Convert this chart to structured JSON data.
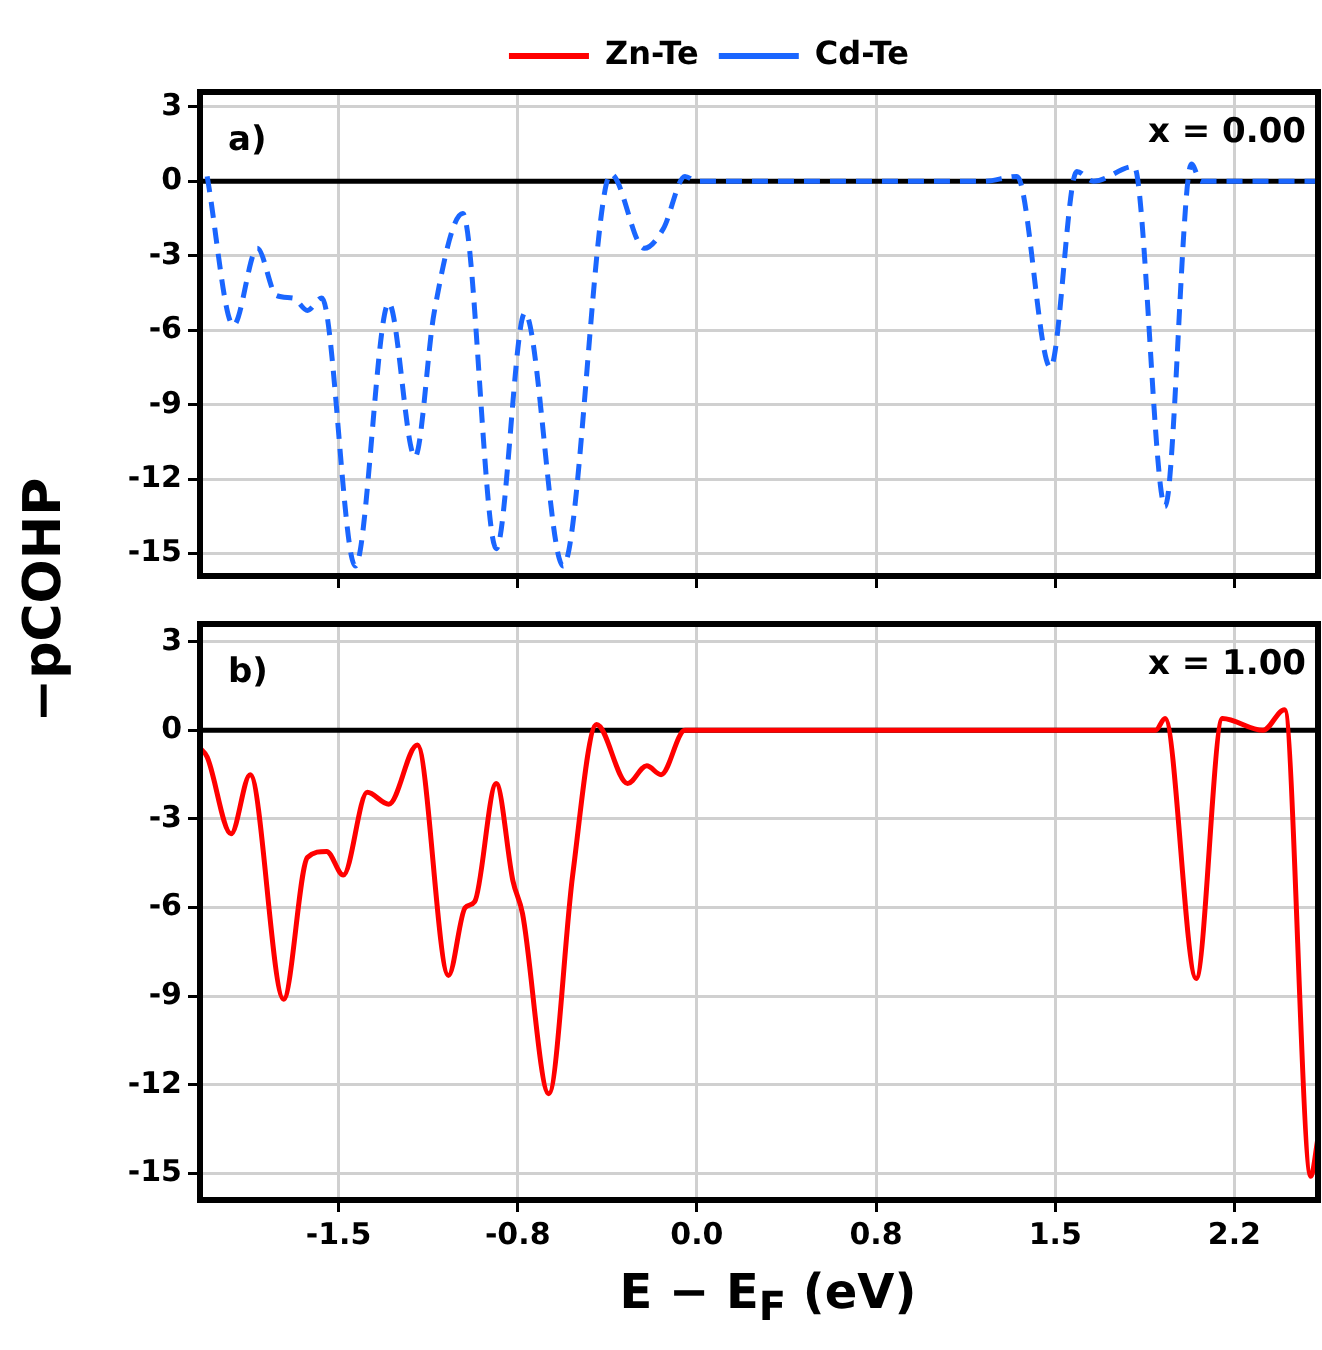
{
  "chart_data": [
    {
      "type": "line",
      "ylabel": "−pCOHP",
      "legend": "top",
      "grid": true,
      "marker": "none",
      "tick_labels": "y",
      "annotations": [
        "a)",
        "x = 0.00"
      ],
      "xlim": [
        -2.08,
        2.6
      ],
      "xticks": [
        {
          "value": -1.5,
          "label": null
        },
        {
          "value": -0.75,
          "label": null
        },
        {
          "value": 0,
          "label": null
        },
        {
          "value": 0.75,
          "label": null
        },
        {
          "value": 1.5,
          "label": null
        },
        {
          "value": 2.25,
          "label": null
        }
      ],
      "ylim": [
        -15.9,
        3.6
      ],
      "yticks": [
        3,
        0,
        -3,
        -6,
        -9,
        -12,
        -15
      ],
      "ref_lines": [
        {
          "axis": "y",
          "value": 0,
          "color": "#000000"
        }
      ],
      "series": [
        {
          "name": "Zn-Te",
          "color": "#ff0000",
          "line_style": "solid"
        },
        {
          "name": "Cd-Te",
          "color": "#1a66ff",
          "line_style": "dashed",
          "x": [
            -2.05,
            -1.94,
            -1.84,
            -1.76,
            -1.69,
            -1.63,
            -1.57,
            -1.43,
            -1.29,
            -1.18,
            -1.1,
            -0.98,
            -0.84,
            -0.72,
            -0.56,
            -0.36,
            -0.22,
            -0.14,
            -0.05,
            0,
            1.2,
            1.34,
            1.48,
            1.59,
            1.66,
            1.83,
            1.96,
            2.07,
            2.11,
            2.6
          ],
          "values": [
            0.2,
            -5.8,
            -2.7,
            -4.6,
            -4.7,
            -5.2,
            -4.7,
            -15.5,
            -4.9,
            -11.1,
            -5.3,
            -1.3,
            -14.8,
            -5.3,
            -15.5,
            0.3,
            -2.7,
            -1.9,
            0.2,
            0,
            0,
            0.2,
            -7.5,
            0.4,
            0,
            0.6,
            -13.1,
            0.7,
            0,
            0
          ]
        }
      ]
    },
    {
      "type": "line",
      "xlabel": "E − E$_{F}$ (eV)",
      "grid": true,
      "marker": "none",
      "annotations": [
        "b)",
        "x = 1.00"
      ],
      "xlim": [
        -2.08,
        2.6
      ],
      "xticks": [
        -1.5,
        {
          "value": -0.75,
          "label": "-0.8"
        },
        {
          "value": 0,
          "label": "0.0"
        },
        {
          "value": 0.75,
          "label": "0.8"
        },
        1.5,
        {
          "value": 2.25,
          "label": "2.2"
        }
      ],
      "ylim": [
        -15.9,
        3.6
      ],
      "yticks": [
        3,
        0,
        -3,
        -6,
        -9,
        -12,
        -15
      ],
      "ref_lines": [
        {
          "axis": "y",
          "value": 0,
          "color": "#000000"
        }
      ],
      "series": [
        {
          "color": "#ff0000",
          "line_style": "solid",
          "x": [
            -2.08,
            -2.05,
            -1.95,
            -1.87,
            -1.73,
            -1.63,
            -1.55,
            -1.48,
            -1.38,
            -1.29,
            -1.17,
            -1.04,
            -0.97,
            -0.93,
            -0.84,
            -0.77,
            -0.73,
            -0.62,
            -0.52,
            -0.42,
            -0.29,
            -0.21,
            -0.15,
            -0.05,
            1.7,
            1.92,
            1.96,
            2.09,
            2.2,
            2.37,
            2.46,
            2.57,
            2.6
          ],
          "values": [
            -0.6,
            -0.9,
            -3.5,
            -1.5,
            -9.1,
            -4.3,
            -4.1,
            -4.9,
            -2.1,
            -2.5,
            -0.5,
            -8.3,
            -6,
            -5.8,
            -1.8,
            -5.1,
            -6.2,
            -12.3,
            -4.9,
            0.2,
            -1.8,
            -1.2,
            -1.5,
            0,
            0,
            0,
            0.4,
            -8.4,
            0.4,
            0,
            0.7,
            -15.1,
            -13.8
          ]
        }
      ]
    }
  ]
}
